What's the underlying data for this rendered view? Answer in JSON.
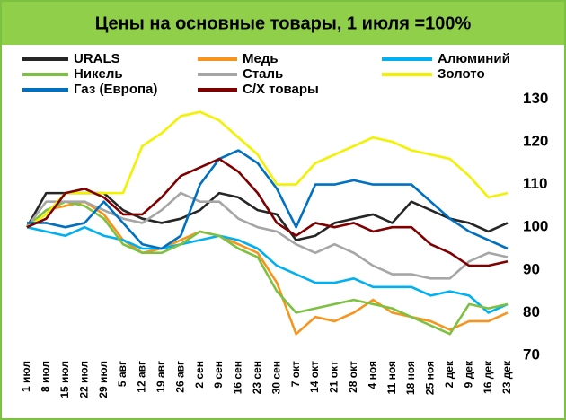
{
  "chart_data": {
    "type": "line",
    "title": "Цены на основные товары, 1 июля =100%",
    "categories": [
      "1 июл",
      "8 июл",
      "15 июл",
      "22 июл",
      "29 июл",
      "5 авг",
      "12 авг",
      "19 авг",
      "26 авг",
      "2 сен",
      "9 сен",
      "16 сен",
      "23 сен",
      "30 сен",
      "7 окт",
      "14 окт",
      "21 окт",
      "28 окт",
      "4 ноя",
      "11 ноя",
      "18 ноя",
      "25 ноя",
      "2 дек",
      "9 дек",
      "16 дек",
      "23 дек"
    ],
    "ylim": [
      70,
      130
    ],
    "yticks": [
      70,
      80,
      90,
      100,
      110,
      120,
      130
    ],
    "grid": false,
    "series": [
      {
        "name": "URALS",
        "color": "#262626",
        "values": [
          100,
          108,
          108,
          108,
          108,
          104,
          102,
          101,
          102,
          104,
          108,
          107,
          104,
          103,
          97,
          98,
          101,
          102,
          103,
          101,
          106,
          104,
          102,
          101,
          99,
          101
        ]
      },
      {
        "name": "Медь",
        "color": "#f7941d",
        "values": [
          100,
          104,
          105,
          106,
          103,
          97,
          94,
          95,
          97,
          99,
          98,
          96,
          94,
          87,
          75,
          79,
          78,
          80,
          83,
          80,
          79,
          78,
          76,
          78,
          78,
          80
        ]
      },
      {
        "name": "Алюминий",
        "color": "#00b0f0",
        "values": [
          100,
          99,
          98,
          100,
          98,
          97,
          95,
          95,
          96,
          97,
          98,
          97,
          95,
          91,
          89,
          87,
          87,
          88,
          86,
          86,
          86,
          84,
          85,
          84,
          80,
          82
        ]
      },
      {
        "name": "Никель",
        "color": "#7dc142",
        "values": [
          100,
          104,
          106,
          105,
          102,
          96,
          94,
          94,
          96,
          99,
          98,
          95,
          93,
          85,
          80,
          81,
          82,
          83,
          82,
          81,
          79,
          77,
          75,
          82,
          81,
          82
        ]
      },
      {
        "name": "Сталь",
        "color": "#a6a6a6",
        "values": [
          100,
          106,
          106,
          106,
          104,
          102,
          101,
          104,
          108,
          106,
          106,
          102,
          100,
          99,
          96,
          94,
          96,
          94,
          91,
          89,
          89,
          88,
          88,
          92,
          94,
          93
        ]
      },
      {
        "name": "Золото",
        "color": "#f2f200",
        "values": [
          100,
          103,
          108,
          108,
          108,
          108,
          119,
          122,
          126,
          127,
          125,
          121,
          117,
          110,
          110,
          115,
          117,
          119,
          121,
          120,
          118,
          117,
          116,
          112,
          107,
          108
        ]
      },
      {
        "name": "Газ (Европа)",
        "color": "#0070c0",
        "values": [
          101,
          101,
          100,
          101,
          106,
          101,
          96,
          95,
          98,
          110,
          116,
          118,
          115,
          109,
          100,
          110,
          110,
          111,
          110,
          110,
          110,
          106,
          102,
          99,
          97,
          95
        ]
      },
      {
        "name": "С/Х товары",
        "color": "#7f0000",
        "values": [
          100,
          102,
          108,
          109,
          107,
          103,
          103,
          107,
          112,
          114,
          116,
          113,
          108,
          101,
          98,
          101,
          100,
          101,
          99,
          100,
          100,
          96,
          94,
          91,
          91,
          92
        ]
      }
    ]
  }
}
